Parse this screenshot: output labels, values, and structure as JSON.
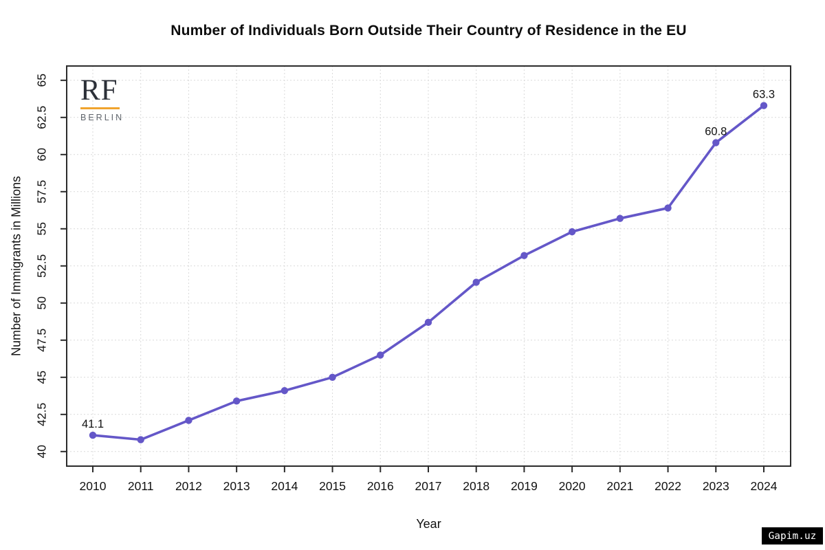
{
  "chart_data": {
    "type": "line",
    "title": "Number of Individuals Born Outside Their Country of Residence in the EU",
    "xlabel": "Year",
    "ylabel": "Number of Immigrants in Millions",
    "x": [
      2010,
      2011,
      2012,
      2013,
      2014,
      2015,
      2016,
      2017,
      2018,
      2019,
      2020,
      2021,
      2022,
      2023,
      2024
    ],
    "series": [
      {
        "name": "Immigrants in Millions",
        "values": [
          41.1,
          40.8,
          42.1,
          43.4,
          44.1,
          45.0,
          46.5,
          48.7,
          51.4,
          53.2,
          54.8,
          55.7,
          56.4,
          60.8,
          63.3
        ]
      }
    ],
    "point_labels": [
      {
        "x": 2010,
        "text": "41.1"
      },
      {
        "x": 2023,
        "text": "60.8"
      },
      {
        "x": 2024,
        "text": "63.3"
      }
    ],
    "ylim": [
      40,
      65
    ],
    "yticks": [
      40,
      42.5,
      45,
      47.5,
      50,
      52.5,
      55,
      57.5,
      60,
      62.5,
      65
    ],
    "ytick_labels": [
      "40",
      "42.5",
      "45",
      "47.5",
      "50",
      "52.5",
      "55",
      "57.5",
      "60",
      "62.5",
      "65"
    ],
    "xtick_labels": [
      "2010",
      "2011",
      "2012",
      "2013",
      "2014",
      "2015",
      "2016",
      "2017",
      "2018",
      "2019",
      "2020",
      "2021",
      "2022",
      "2023",
      "2024"
    ],
    "grid": "dashed",
    "legend": "none",
    "line_color": "#6457c8",
    "marker_color": "#6457c8",
    "grid_color": "#d9d9d9",
    "axis_color": "#2b2b2b",
    "text_color": "#111111"
  },
  "branding": {
    "name": "RF",
    "city": "BERLIN",
    "underline_color": "#f0a32e"
  },
  "watermark": {
    "text": "Gapim.uz"
  }
}
